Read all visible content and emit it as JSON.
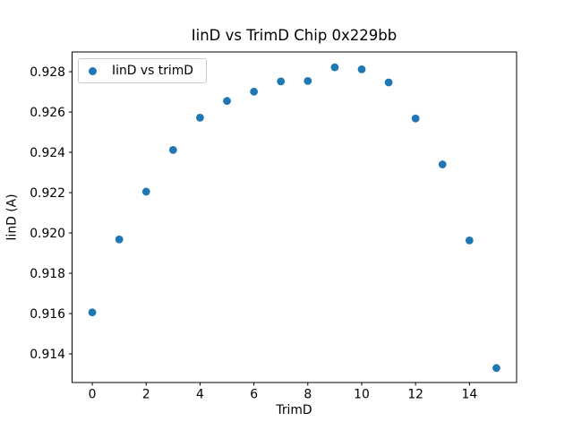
{
  "chart_data": {
    "type": "scatter",
    "title": "IinD vs TrimD Chip 0x229bb",
    "xlabel": "TrimD",
    "ylabel": "IinD (A)",
    "legend_label": "IinD vs trimD",
    "legend_position": "upper left",
    "x": [
      0,
      1,
      2,
      3,
      4,
      5,
      6,
      7,
      8,
      9,
      10,
      11,
      12,
      13,
      14,
      15
    ],
    "y": [
      0.91606,
      0.91968,
      0.92205,
      0.92412,
      0.92572,
      0.92655,
      0.92701,
      0.92752,
      0.92754,
      0.92822,
      0.92812,
      0.92747,
      0.92568,
      0.9234,
      0.91963,
      0.9133
    ],
    "xticks": [
      0,
      2,
      4,
      6,
      8,
      10,
      12,
      14
    ],
    "yticks": [
      0.914,
      0.916,
      0.918,
      0.92,
      0.922,
      0.924,
      0.926,
      0.928
    ],
    "xlim": [
      -0.75,
      15.75
    ],
    "ylim": [
      0.91258,
      0.92898
    ],
    "grid": false,
    "marker": "circle",
    "colors": {
      "marker": "#1f77b4",
      "axes": "#000000",
      "legend_border": "#cccccc",
      "background": "#ffffff",
      "text": "#000000"
    }
  }
}
